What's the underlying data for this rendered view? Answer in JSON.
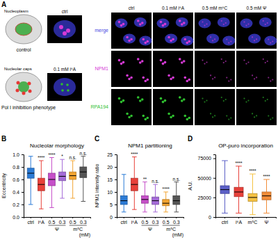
{
  "panel_a": {
    "label": "A",
    "schematic": [
      {
        "caption": "control",
        "annotation": "Nucleoplasm",
        "image_label": "ctrl"
      },
      {
        "caption": "Pol I inhibition phenotype",
        "annotation": "Nucleolar caps",
        "image_label": "0.1 mM i⁶A"
      }
    ],
    "columns": [
      "ctrl",
      "0.1 mM i⁶A",
      "0.5 mM m⁵C",
      "0.5 mM Ψ"
    ],
    "rows": [
      {
        "label": "merge",
        "color": "#4a4adf"
      },
      {
        "label": "NPM1",
        "color": "#d63ad6"
      },
      {
        "label": "RPA194",
        "color": "#2fbf2f"
      }
    ]
  },
  "chart_data": [
    {
      "type": "box",
      "panel_label": "B",
      "title": "Nucleolar morphology",
      "y_label": "Eccentricity",
      "categories": [
        "ctrl",
        "i⁶A",
        "0.5",
        "0.3",
        "0.5",
        "0.3"
      ],
      "groups": [
        {
          "label": "Ψ",
          "members": [
            2,
            3
          ]
        },
        {
          "label": "m⁵C",
          "members": [
            4,
            5
          ]
        }
      ],
      "unit_label": "(mM)",
      "colors": [
        "#2b7bd6",
        "#e8413a",
        "#c64fc9",
        "#a46ad8",
        "#f2a431",
        "#555555"
      ],
      "boxes": [
        {
          "min": 0.2,
          "q1": 0.62,
          "median": 0.7,
          "q3": 0.78,
          "max": 0.97
        },
        {
          "min": 0.13,
          "q1": 0.42,
          "median": 0.52,
          "q3": 0.62,
          "max": 0.9
        },
        {
          "min": 0.15,
          "q1": 0.5,
          "median": 0.6,
          "q3": 0.7,
          "max": 0.95
        },
        {
          "min": 0.3,
          "q1": 0.58,
          "median": 0.65,
          "q3": 0.72,
          "max": 0.92
        },
        {
          "min": 0.3,
          "q1": 0.6,
          "median": 0.66,
          "q3": 0.72,
          "max": 0.9
        },
        {
          "min": 0.25,
          "q1": 0.63,
          "median": 0.72,
          "q3": 0.8,
          "max": 0.97
        }
      ],
      "significance": [
        null,
        "****",
        "****",
        "*",
        "n.s.",
        "n.s."
      ],
      "ylim": [
        0,
        1
      ],
      "yticks": [
        {
          "value": 0,
          "label": "0.0"
        },
        {
          "value": 0.2,
          "label": "0.2"
        },
        {
          "value": 0.4,
          "label": "0.4"
        },
        {
          "value": 0.6,
          "label": "0.6"
        },
        {
          "value": 0.8,
          "label": "0.8"
        },
        {
          "value": 1,
          "label": "1.0"
        }
      ]
    },
    {
      "type": "box",
      "panel_label": "C",
      "title": "NPM1 partitioning",
      "y_label": "NPM1 intensity ratio",
      "categories": [
        "ctrl",
        "i⁶A",
        "0.5",
        "0.3",
        "0.5",
        "0.3"
      ],
      "groups": [
        {
          "label": "Ψ",
          "members": [
            2,
            3
          ]
        },
        {
          "label": "m⁵C",
          "members": [
            4,
            5
          ]
        }
      ],
      "unit_label": "(mM)",
      "colors": [
        "#2b7bd6",
        "#e8413a",
        "#c64fc9",
        "#a46ad8",
        "#f2a431",
        "#555555"
      ],
      "boxes": [
        {
          "min": 2,
          "q1": 5,
          "median": 6.5,
          "q3": 8.5,
          "max": 17
        },
        {
          "min": 3,
          "q1": 10.5,
          "median": 13,
          "q3": 15.5,
          "max": 24
        },
        {
          "min": 2,
          "q1": 5.5,
          "median": 7,
          "q3": 8.5,
          "max": 14
        },
        {
          "min": 2,
          "q1": 5,
          "median": 6.5,
          "q3": 8,
          "max": 13
        },
        {
          "min": 2,
          "q1": 4.5,
          "median": 5.5,
          "q3": 7,
          "max": 10
        },
        {
          "min": 2,
          "q1": 5,
          "median": 6.5,
          "q3": 8.5,
          "max": 14
        }
      ],
      "significance": [
        null,
        "****",
        "**",
        "n.s.",
        "****",
        "n.s."
      ],
      "ylim": [
        0,
        25
      ],
      "yticks": [
        0,
        5,
        10,
        15,
        20,
        25
      ]
    },
    {
      "type": "box",
      "panel_label": "D",
      "title": "OP-puro incorporation",
      "y_label": "A.U.",
      "categories": [
        "ctrl",
        "i⁶A",
        "m⁵C",
        "Ψ"
      ],
      "colors": [
        "#5b5fc7",
        "#e8413a",
        "#f5c242",
        "#f28c38"
      ],
      "boxes": [
        {
          "min": 5000,
          "q1": 30000,
          "median": 35000,
          "q3": 40000,
          "max": 72000
        },
        {
          "min": 5000,
          "q1": 26000,
          "median": 32000,
          "q3": 38000,
          "max": 65000
        },
        {
          "min": 3000,
          "q1": 20000,
          "median": 25000,
          "q3": 30000,
          "max": 55000
        },
        {
          "min": 5000,
          "q1": 22000,
          "median": 27000,
          "q3": 32000,
          "max": 48000
        }
      ],
      "significance": [
        null,
        "****",
        "****",
        "****"
      ],
      "ylim": [
        0,
        80000
      ],
      "yticks": [
        0,
        25000,
        50000,
        75000
      ]
    }
  ]
}
